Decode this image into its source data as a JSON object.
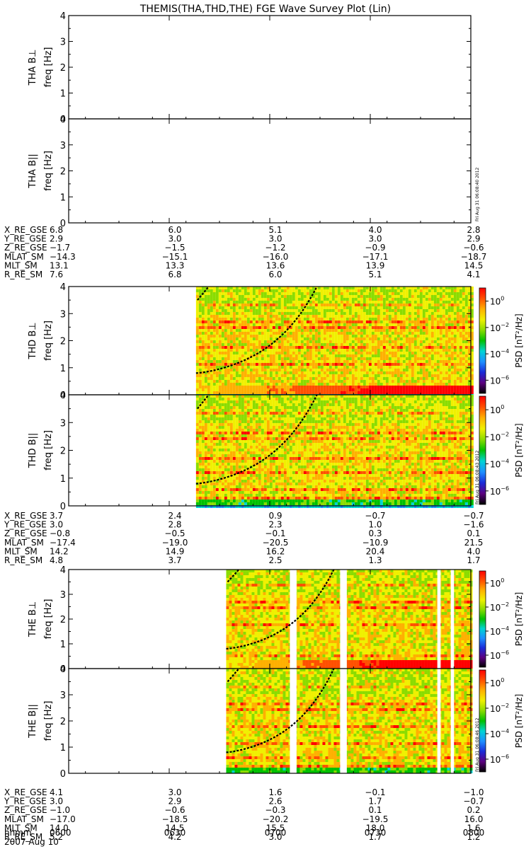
{
  "title": "THEMIS(THA,THD,THE) FGE Wave Survey Plot (Lin)",
  "date_label": "2007 Aug 10",
  "stamps": [
    "Fri Aug 31 06:08:40 2012",
    "Fri Aug 31 06:08:43 2012",
    "Fri Aug 31 06:08:46 2012"
  ],
  "colorbar": {
    "label": "PSD [nT²/Hz]",
    "scale": "log",
    "range_exponent": [
      -7,
      1
    ],
    "tick_exponents": [
      0,
      -2,
      -4,
      -6
    ],
    "colors": [
      "#000000",
      "#5c0080",
      "#1b2bd8",
      "#1e90ff",
      "#00d4d4",
      "#00c000",
      "#8bdc00",
      "#f0f000",
      "#ffb000",
      "#ff5000",
      "#ff0000"
    ]
  },
  "chart_data": {
    "type": "heatmap",
    "x_axis": {
      "label": "hhmm",
      "ticks": [
        "0600",
        "0630",
        "0700",
        "0730",
        "0800"
      ],
      "range": [
        "06:00",
        "08:00"
      ]
    },
    "y_axis": {
      "label": "freq [Hz]",
      "range": [
        0,
        4
      ],
      "ticks": [
        0,
        1,
        2,
        3,
        4
      ]
    },
    "panels": [
      {
        "probe": "THA",
        "component": "B⊥",
        "label": "THA B⊥",
        "data_coverage": null
      },
      {
        "probe": "THA",
        "component": "B||",
        "label": "THA B||",
        "data_coverage": null
      },
      {
        "probe": "THD",
        "component": "B⊥",
        "label": "THD B⊥",
        "data_coverage": [
          "06:38",
          "08:00"
        ],
        "gaps": []
      },
      {
        "probe": "THD",
        "component": "B||",
        "label": "THD B||",
        "data_coverage": [
          "06:38",
          "08:00"
        ],
        "gaps": []
      },
      {
        "probe": "THE",
        "component": "B⊥",
        "label": "THE B⊥",
        "data_coverage": [
          "06:47",
          "08:00"
        ],
        "gaps": [
          [
            "07:06",
            "07:08"
          ],
          [
            "07:21",
            "07:23"
          ],
          [
            "07:50",
            "07:51"
          ],
          [
            "07:54",
            "07:55"
          ]
        ]
      },
      {
        "probe": "THE",
        "component": "B||",
        "label": "THE B||",
        "data_coverage": [
          "06:47",
          "08:00"
        ],
        "gaps": [
          [
            "07:06",
            "07:08"
          ],
          [
            "07:21",
            "07:23"
          ],
          [
            "07:50",
            "07:51"
          ],
          [
            "07:54",
            "07:55"
          ]
        ]
      }
    ],
    "ephemeris": [
      {
        "probe": "THA",
        "rows": [
          {
            "name": "X_RE_GSE",
            "values": [
              "6.8",
              "6.0",
              "5.1",
              "4.0",
              "2.8"
            ]
          },
          {
            "name": "Y_RE_GSE",
            "values": [
              "2.9",
              "3.0",
              "3.0",
              "3.0",
              "2.9"
            ]
          },
          {
            "name": "Z_RE_GSE",
            "values": [
              "−1.7",
              "−1.5",
              "−1.2",
              "−0.9",
              "−0.6"
            ]
          },
          {
            "name": "MLAT_SM",
            "values": [
              "−14.3",
              "−15.1",
              "−16.0",
              "−17.1",
              "−18.7"
            ]
          },
          {
            "name": "MLT_SM",
            "values": [
              "13.1",
              "13.3",
              "13.6",
              "13.9",
              "14.5"
            ]
          },
          {
            "name": "R_RE_SM",
            "values": [
              "7.6",
              "6.8",
              "6.0",
              "5.1",
              "4.1"
            ]
          }
        ]
      },
      {
        "probe": "THD",
        "rows": [
          {
            "name": "X_RE_GSE",
            "values": [
              "3.7",
              "2.4",
              "0.9",
              "−0.7",
              "−0.7"
            ]
          },
          {
            "name": "Y_RE_GSE",
            "values": [
              "3.0",
              "2.8",
              "2.3",
              "1.0",
              "−1.6"
            ]
          },
          {
            "name": "Z_RE_GSE",
            "values": [
              "−0.8",
              "−0.5",
              "−0.1",
              "0.3",
              "0.1"
            ]
          },
          {
            "name": "MLAT_SM",
            "values": [
              "−17.4",
              "−19.0",
              "−20.5",
              "−10.9",
              "21.5"
            ]
          },
          {
            "name": "MLT_SM",
            "values": [
              "14.2",
              "14.9",
              "16.2",
              "20.4",
              "4.0"
            ]
          },
          {
            "name": "R_RE_SM",
            "values": [
              "4.8",
              "3.7",
              "2.5",
              "1.3",
              "1.7"
            ]
          }
        ]
      },
      {
        "probe": "THE",
        "rows": [
          {
            "name": "X_RE_GSE",
            "values": [
              "4.1",
              "3.0",
              "1.6",
              "−0.1",
              "−1.0"
            ]
          },
          {
            "name": "Y_RE_GSE",
            "values": [
              "3.0",
              "2.9",
              "2.6",
              "1.7",
              "−0.7"
            ]
          },
          {
            "name": "Z_RE_GSE",
            "values": [
              "−1.0",
              "−0.6",
              "−0.3",
              "0.1",
              "0.2"
            ]
          },
          {
            "name": "MLAT_SM",
            "values": [
              "−17.0",
              "−18.5",
              "−20.2",
              "−19.5",
              "16.0"
            ]
          },
          {
            "name": "MLT_SM",
            "values": [
              "14.0",
              "14.5",
              "15.5",
              "18.0",
              "1.6"
            ]
          },
          {
            "name": "R_RE_SM",
            "values": [
              "5.2",
              "4.2",
              "3.0",
              "1.7",
              "1.2"
            ]
          }
        ]
      }
    ]
  }
}
